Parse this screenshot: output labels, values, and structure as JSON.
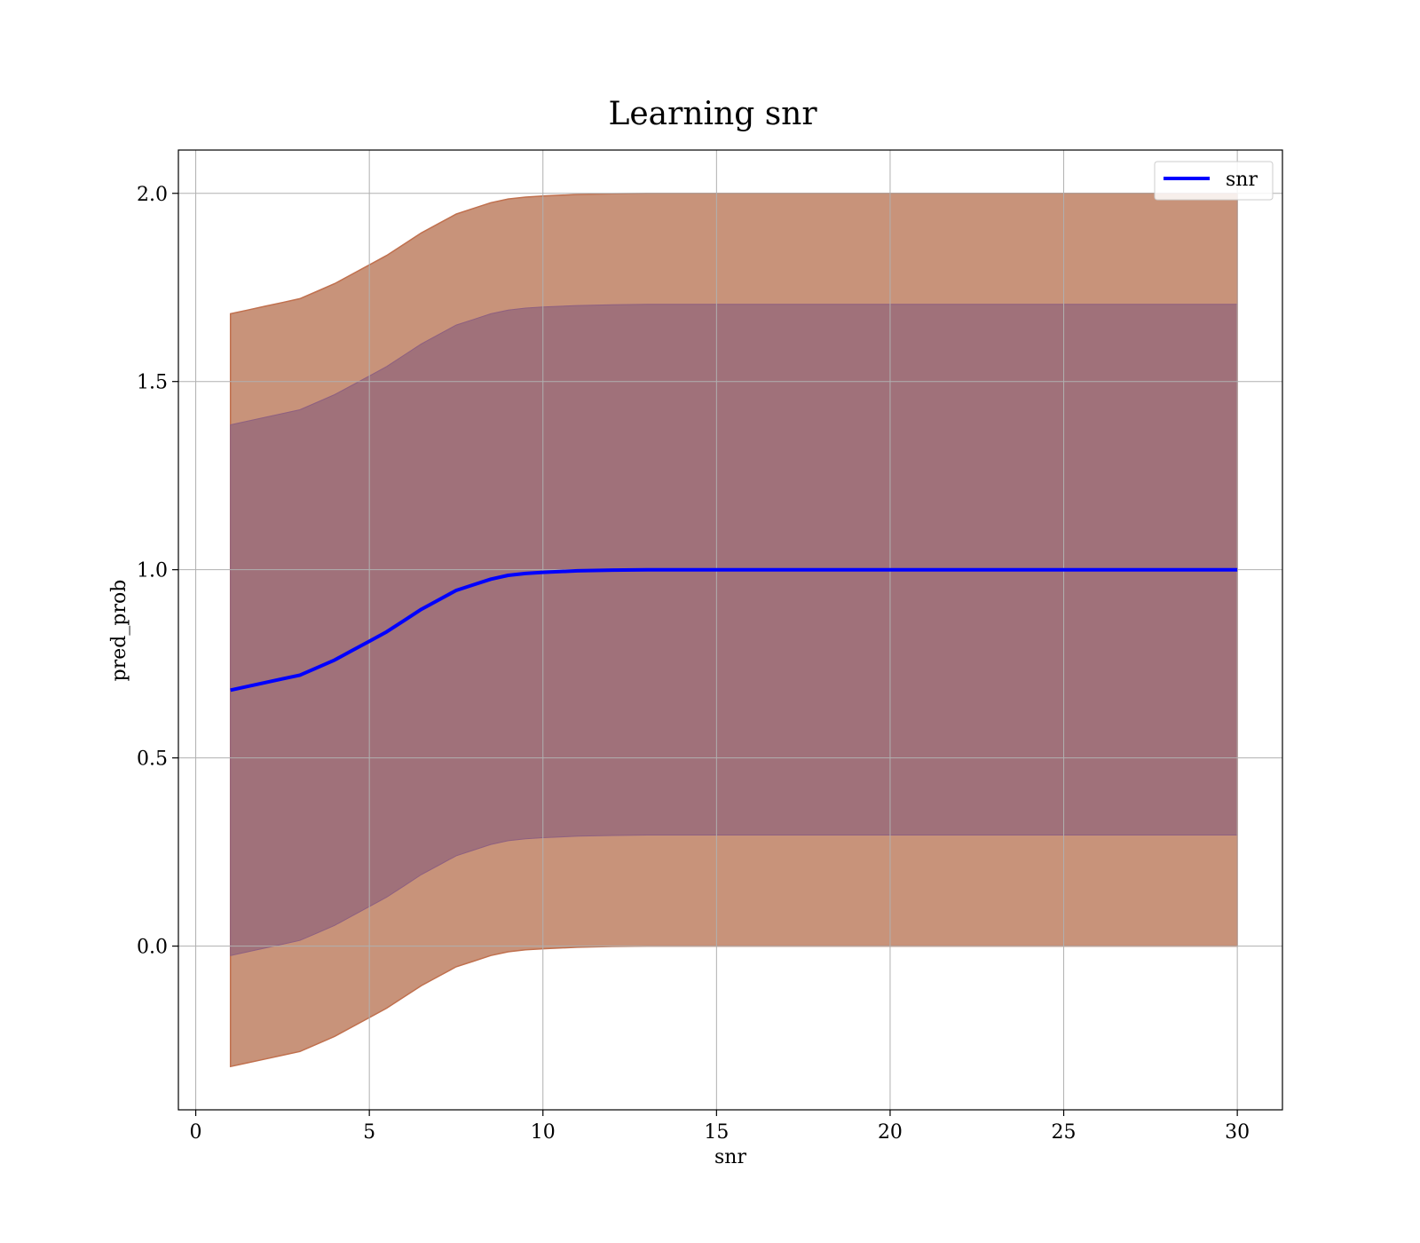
{
  "chart_data": {
    "type": "line",
    "title": "Learning snr",
    "xlabel": "snr",
    "ylabel": "pred_prob",
    "xlim": [
      -0.5,
      31.3
    ],
    "ylim": [
      -0.435,
      2.115
    ],
    "x_ticks": [
      0,
      5,
      10,
      15,
      20,
      25,
      30
    ],
    "y_ticks": [
      0.0,
      0.5,
      1.0,
      1.5,
      2.0
    ],
    "x_tick_labels": [
      "0",
      "5",
      "10",
      "15",
      "20",
      "25",
      "30"
    ],
    "y_tick_labels": [
      "0.0",
      "0.5",
      "1.0",
      "1.5",
      "2.0"
    ],
    "grid": true,
    "legend": {
      "placement": "top-right",
      "entries": [
        "snr"
      ]
    },
    "series": [
      {
        "name": "snr",
        "color": "#0000ff",
        "x": [
          1,
          1.5,
          2,
          2.5,
          3,
          3.5,
          4,
          4.5,
          5,
          5.5,
          6,
          6.5,
          7,
          7.5,
          8,
          8.5,
          9,
          9.5,
          10,
          11,
          12,
          13,
          14,
          15,
          17,
          20,
          25,
          30
        ],
        "y": [
          0.68,
          0.69,
          0.7,
          0.71,
          0.72,
          0.74,
          0.76,
          0.785,
          0.81,
          0.835,
          0.865,
          0.895,
          0.92,
          0.945,
          0.96,
          0.975,
          0.985,
          0.99,
          0.993,
          0.997,
          0.999,
          1.0,
          1.0,
          1.0,
          1.0,
          1.0,
          1.0,
          1.0
        ],
        "band_1std": {
          "color": "#a0717a",
          "halfwidth": 0.705
        },
        "band_2std": {
          "color": "#c8937a",
          "halfwidth": 1.0
        }
      }
    ]
  }
}
